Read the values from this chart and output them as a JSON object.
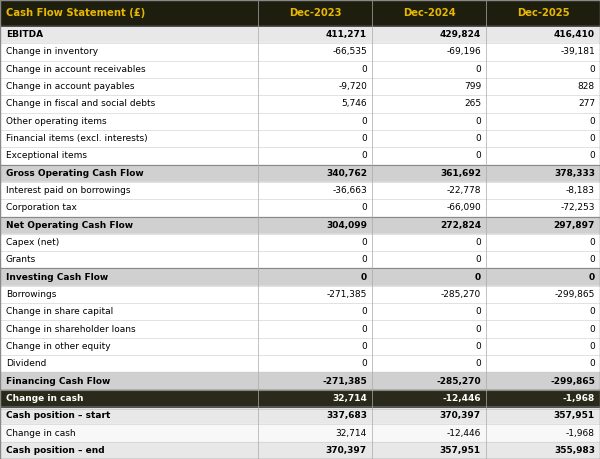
{
  "title": "Cash Flow Statement (£)",
  "columns": [
    "Dec-2023",
    "Dec-2024",
    "Dec-2025"
  ],
  "rows": [
    {
      "label": "EBITDA",
      "values": [
        "411,271",
        "429,824",
        "416,410"
      ],
      "type": "bold_lightgray"
    },
    {
      "label": "Change in inventory",
      "values": [
        "-66,535",
        "-69,196",
        "-39,181"
      ],
      "type": "normal"
    },
    {
      "label": "Change in account receivables",
      "values": [
        "0",
        "0",
        "0"
      ],
      "type": "normal"
    },
    {
      "label": "Change in account payables",
      "values": [
        "-9,720",
        "799",
        "828"
      ],
      "type": "normal"
    },
    {
      "label": "Change in fiscal and social debts",
      "values": [
        "5,746",
        "265",
        "277"
      ],
      "type": "normal"
    },
    {
      "label": "Other operating items",
      "values": [
        "0",
        "0",
        "0"
      ],
      "type": "normal"
    },
    {
      "label": "Financial items (excl. interests)",
      "values": [
        "0",
        "0",
        "0"
      ],
      "type": "normal"
    },
    {
      "label": "Exceptional items",
      "values": [
        "0",
        "0",
        "0"
      ],
      "type": "normal"
    },
    {
      "label": "Gross Operating Cash Flow",
      "values": [
        "340,762",
        "361,692",
        "378,333"
      ],
      "type": "bold_gray"
    },
    {
      "label": "Interest paid on borrowings",
      "values": [
        "-36,663",
        "-22,778",
        "-8,183"
      ],
      "type": "normal"
    },
    {
      "label": "Corporation tax",
      "values": [
        "0",
        "-66,090",
        "-72,253"
      ],
      "type": "normal"
    },
    {
      "label": "Net Operating Cash Flow",
      "values": [
        "304,099",
        "272,824",
        "297,897"
      ],
      "type": "bold_gray"
    },
    {
      "label": "Capex (net)",
      "values": [
        "0",
        "0",
        "0"
      ],
      "type": "normal"
    },
    {
      "label": "Grants",
      "values": [
        "0",
        "0",
        "0"
      ],
      "type": "normal"
    },
    {
      "label": "Investing Cash Flow",
      "values": [
        "0",
        "0",
        "0"
      ],
      "type": "bold_gray"
    },
    {
      "label": "Borrowings",
      "values": [
        "-271,385",
        "-285,270",
        "-299,865"
      ],
      "type": "normal"
    },
    {
      "label": "Change in share capital",
      "values": [
        "0",
        "0",
        "0"
      ],
      "type": "normal"
    },
    {
      "label": "Change in shareholder loans",
      "values": [
        "0",
        "0",
        "0"
      ],
      "type": "normal"
    },
    {
      "label": "Change in other equity",
      "values": [
        "0",
        "0",
        "0"
      ],
      "type": "normal"
    },
    {
      "label": "Dividend",
      "values": [
        "0",
        "0",
        "0"
      ],
      "type": "normal"
    },
    {
      "label": "Financing Cash Flow",
      "values": [
        "-271,385",
        "-285,270",
        "-299,865"
      ],
      "type": "bold_gray"
    },
    {
      "label": "Change in cash",
      "values": [
        "32,714",
        "-12,446",
        "-1,968"
      ],
      "type": "bold_dark"
    },
    {
      "label": "Cash position – start",
      "values": [
        "337,683",
        "370,397",
        "357,951"
      ],
      "type": "bold_bottom"
    },
    {
      "label": "Change in cash",
      "values": [
        "32,714",
        "-12,446",
        "-1,968"
      ],
      "type": "normal_bottom"
    },
    {
      "label": "Cash position – end",
      "values": [
        "370,397",
        "357,951",
        "355,983"
      ],
      "type": "bold_bottom"
    }
  ],
  "header_bg": "#1e1e0f",
  "header_text": "#e8b800",
  "bold_gray_bg": "#d0d0d0",
  "bold_lightgray_bg": "#e8e8e8",
  "bold_dark_bg": "#2a2a1a",
  "bold_dark_text": "#ffffff",
  "normal_bg": "#ffffff",
  "bottom_bg": "#f8f8f8",
  "bottom_bold_bg": "#e8e8e8",
  "sep_color": "#aaaaaa",
  "thick_sep_color": "#555555",
  "outer_border": "#888888"
}
